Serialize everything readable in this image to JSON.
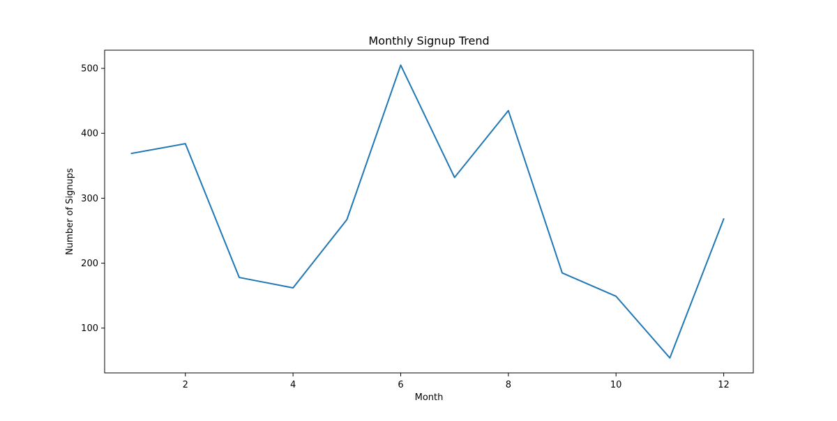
{
  "chart_data": {
    "type": "line",
    "title": "Monthly Signup Trend",
    "xlabel": "Month",
    "ylabel": "Number of Signups",
    "x": [
      1,
      2,
      3,
      4,
      5,
      6,
      7,
      8,
      9,
      10,
      11,
      12
    ],
    "series": [
      {
        "values": [
          369,
          384,
          178,
          162,
          267,
          505,
          332,
          435,
          185,
          149,
          54,
          268
        ]
      }
    ],
    "xlim": [
      0.5,
      12.55
    ],
    "ylim": [
      31,
      528
    ],
    "xticks": [
      2,
      4,
      6,
      8,
      10,
      12
    ],
    "yticks": [
      100,
      200,
      300,
      400,
      500
    ],
    "grid": false,
    "line_color": "#1f77b4"
  }
}
